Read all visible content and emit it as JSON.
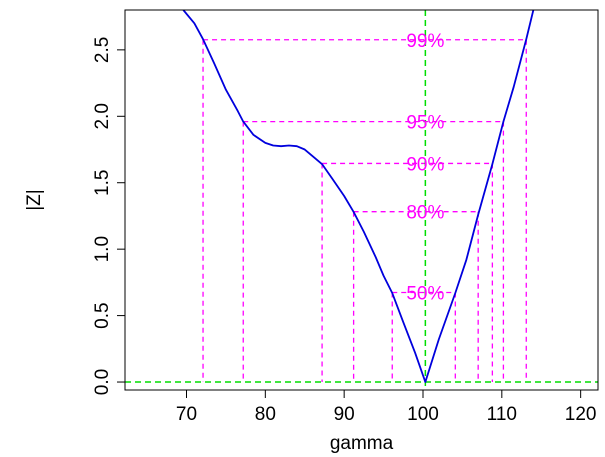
{
  "chart_data": {
    "type": "line",
    "title": "",
    "xlabel": "gamma",
    "ylabel": "|Z|",
    "xlim": [
      62.2,
      122.2
    ],
    "ylim": [
      -0.06,
      2.8
    ],
    "x_ticks": [
      {
        "value": 70,
        "label": "70"
      },
      {
        "value": 80,
        "label": "80"
      },
      {
        "value": 90,
        "label": "90"
      },
      {
        "value": 100,
        "label": "100"
      },
      {
        "value": 110,
        "label": "110"
      },
      {
        "value": 120,
        "label": "120"
      }
    ],
    "y_ticks": [
      {
        "value": 0.0,
        "label": "0.0"
      },
      {
        "value": 0.5,
        "label": "0.5"
      },
      {
        "value": 1.0,
        "label": "1.0"
      },
      {
        "value": 1.5,
        "label": "1.5"
      },
      {
        "value": 2.0,
        "label": "2.0"
      },
      {
        "value": 2.5,
        "label": "2.5"
      }
    ],
    "grid": false,
    "series": [
      {
        "color": "#0000dd",
        "x": [
          69.6,
          71.0,
          72.1,
          73.5,
          75.0,
          76.5,
          77.2,
          78.5,
          80.0,
          81.0,
          82.0,
          83.0,
          84.0,
          85.0,
          86.0,
          87.2,
          88.5,
          90.0,
          91.2,
          92.5,
          94.0,
          95.0,
          96.1,
          97.5,
          99.0,
          100.3,
          102.0,
          104.1,
          105.5,
          107.0,
          108.8,
          110.2,
          111.5,
          113.1,
          114.0
        ],
        "y": [
          2.8,
          2.7,
          2.58,
          2.4,
          2.2,
          2.04,
          1.96,
          1.86,
          1.8,
          1.78,
          1.775,
          1.78,
          1.775,
          1.75,
          1.7,
          1.64,
          1.53,
          1.4,
          1.28,
          1.13,
          0.94,
          0.8,
          0.67,
          0.45,
          0.22,
          0.0,
          0.32,
          0.67,
          0.92,
          1.26,
          1.64,
          1.96,
          2.22,
          2.58,
          2.8
        ]
      }
    ],
    "reference_lines": {
      "color": "#00dd00",
      "horizontal": 0.0,
      "vertical": 100.3
    },
    "confidence_levels": {
      "color": "#ff00ff",
      "levels": [
        {
          "label": "99%",
          "z": 2.576,
          "lower": 72.1,
          "upper": 113.1
        },
        {
          "label": "95%",
          "z": 1.96,
          "lower": 77.2,
          "upper": 110.2
        },
        {
          "label": "90%",
          "z": 1.645,
          "lower": 87.2,
          "upper": 108.8
        },
        {
          "label": "80%",
          "z": 1.282,
          "lower": 91.2,
          "upper": 107.0
        },
        {
          "label": "50%",
          "z": 0.674,
          "lower": 96.1,
          "upper": 104.1
        }
      ]
    }
  }
}
